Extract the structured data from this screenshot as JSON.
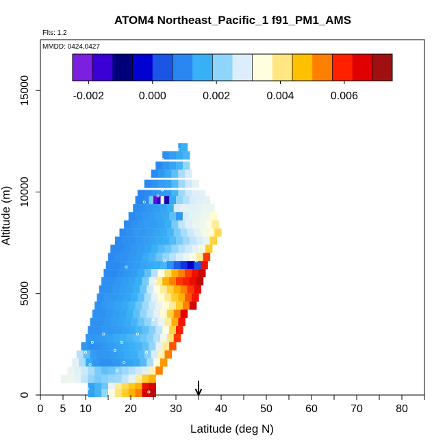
{
  "chart_data": {
    "type": "heatmap",
    "title": "ATOM4 Northeast_Pacific_1 f91_PM1_AMS",
    "flights_label": "Flts: 1,2",
    "dates_label": "MMDD: 0424,0427",
    "xlabel": "Latitude (deg N)",
    "ylabel": "Altitude (m)",
    "xlim": [
      0,
      85
    ],
    "ylim": [
      0,
      17500
    ],
    "x_ticks": [
      0,
      5,
      10,
      20,
      30,
      40,
      50,
      60,
      70,
      80
    ],
    "x_minor_ticks": [
      15,
      25,
      35,
      45,
      55,
      65,
      75,
      85
    ],
    "y_ticks": [
      0,
      5000,
      10000,
      15000
    ],
    "colorbar": {
      "range": [
        -0.0025,
        0.0075
      ],
      "tick_values": [
        -0.002,
        0.0,
        0.002,
        0.004,
        0.006
      ],
      "tick_labels": [
        "-0.002",
        "0.000",
        "0.002",
        "0.004",
        "0.006"
      ],
      "colors": [
        "#7b1fe0",
        "#3a00d6",
        "#00007a",
        "#0000d0",
        "#1a55e6",
        "#2a86f0",
        "#38b0f6",
        "#8fd4fb",
        "#dceefc",
        "#ffffe0",
        "#ffe680",
        "#ffc000",
        "#ff8000",
        "#ff2000",
        "#e00000",
        "#a01010"
      ]
    },
    "arrow_marker_x": 35,
    "strips": [
      {
        "alt": 12200,
        "lats": [
          30.5,
          31.0
        ],
        "values": [
          0.0012,
          0.0015
        ]
      },
      {
        "alt": 11800,
        "lats": [
          27.0,
          28.5,
          30.0,
          31.5
        ],
        "values": [
          0.001,
          0.0012,
          0.0014,
          0.0016
        ]
      },
      {
        "alt": 11300,
        "lats": [
          25.5,
          27.0,
          28.5,
          30.0,
          31.5
        ],
        "values": [
          0.0009,
          0.0011,
          0.0013,
          0.0016,
          0.0022
        ]
      },
      {
        "alt": 10900,
        "lats": [
          24.5,
          26.0,
          27.5,
          29.0,
          30.5,
          32.0
        ],
        "values": [
          0.0009,
          0.0011,
          0.0014,
          0.0018,
          0.0024,
          0.0028
        ]
      },
      {
        "alt": 10400,
        "lats": [
          23.0,
          24.5,
          26.0,
          27.5,
          29.0,
          30.5,
          32.0,
          33.5
        ],
        "values": [
          0.0009,
          0.001,
          0.0012,
          0.0013,
          0.0017,
          0.0023,
          0.0027,
          0.003
        ]
      },
      {
        "alt": 9900,
        "lats": [
          21.5,
          23.0,
          24.5,
          26.0,
          27.5,
          29.0,
          30.5,
          32.0,
          33.5,
          35.0
        ],
        "values": [
          0.0008,
          0.0009,
          0.001,
          0.0011,
          0.0012,
          0.0016,
          0.0023,
          0.0027,
          0.0029,
          0.003
        ]
      },
      {
        "alt": 9600,
        "lats": [
          21.0,
          22.5,
          24.0,
          25.0,
          25.8,
          26.6,
          27.4,
          28.5,
          30.0,
          31.5,
          33.0,
          34.5,
          36.0
        ],
        "values": [
          0.0008,
          0.0009,
          0.002,
          -0.0022,
          -0.0018,
          0.003,
          -0.0015,
          0.0014,
          0.0022,
          0.0025,
          0.0028,
          0.0029,
          0.003
        ]
      },
      {
        "alt": 9200,
        "lats": [
          20.5,
          22.0,
          23.5,
          25.0,
          26.5,
          28.0,
          29.5,
          31.0,
          32.5,
          34.0,
          35.5,
          37.0
        ],
        "values": [
          0.0009,
          0.001,
          0.0011,
          0.0012,
          0.0013,
          0.0015,
          0.0028,
          0.003,
          0.0029,
          0.003,
          0.0031,
          0.0031
        ]
      },
      {
        "alt": 8800,
        "lats": [
          19.5,
          21.0,
          22.5,
          24.0,
          25.5,
          27.0,
          28.5,
          30.0,
          31.5,
          33.0,
          34.5,
          36.0,
          37.5
        ],
        "values": [
          0.0009,
          0.001,
          0.0011,
          0.0012,
          0.0013,
          0.0014,
          0.0018,
          0.0011,
          0.0028,
          0.003,
          0.0031,
          0.0032,
          0.0036
        ]
      },
      {
        "alt": 8400,
        "lats": [
          18.5,
          20.0,
          21.5,
          23.0,
          24.5,
          26.0,
          27.5,
          29.0,
          30.5,
          32.0,
          33.5,
          35.0,
          36.5,
          38.0
        ],
        "values": [
          0.0009,
          0.001,
          0.0011,
          0.0012,
          0.0012,
          0.0013,
          0.0015,
          0.002,
          0.0026,
          0.0029,
          0.0031,
          0.0032,
          0.0034,
          0.004
        ]
      },
      {
        "alt": 8000,
        "lats": [
          17.5,
          19.0,
          20.5,
          22.0,
          23.5,
          25.0,
          26.5,
          28.0,
          29.5,
          31.0,
          32.5,
          34.0,
          35.5,
          37.0,
          38.5
        ],
        "values": [
          0.0009,
          0.001,
          0.0011,
          0.0011,
          0.0012,
          0.0013,
          0.0014,
          0.0016,
          0.002,
          0.0024,
          0.0027,
          0.003,
          0.0033,
          0.0036,
          0.0044
        ]
      },
      {
        "alt": 7600,
        "lats": [
          16.5,
          18.0,
          19.5,
          21.0,
          22.5,
          24.0,
          25.5,
          27.0,
          28.5,
          30.0,
          31.5,
          33.0,
          34.5,
          36.0,
          37.5
        ],
        "values": [
          0.0009,
          0.001,
          0.001,
          0.0011,
          0.0012,
          0.0013,
          0.0014,
          0.0015,
          0.0017,
          0.002,
          0.0023,
          0.0026,
          0.0028,
          0.0031,
          0.0045
        ]
      },
      {
        "alt": 7200,
        "lats": [
          15.5,
          17.0,
          18.5,
          20.0,
          21.5,
          23.0,
          24.5,
          26.0,
          27.5,
          29.0,
          30.5,
          32.0,
          33.5,
          35.0,
          36.5
        ],
        "values": [
          0.0009,
          0.0009,
          0.001,
          0.0011,
          0.0012,
          0.0013,
          0.0015,
          0.0017,
          0.0019,
          0.0022,
          0.0025,
          0.0027,
          0.003,
          0.0033,
          0.0046
        ]
      },
      {
        "alt": 6800,
        "lats": [
          15.0,
          16.5,
          18.0,
          19.5,
          21.0,
          22.5,
          24.0,
          25.5,
          27.0,
          28.5,
          30.0,
          31.5,
          33.0,
          34.5,
          36.0
        ],
        "values": [
          0.0009,
          0.001,
          0.001,
          0.0011,
          0.0012,
          0.0014,
          0.0016,
          0.0019,
          0.0022,
          0.0025,
          0.0028,
          0.0031,
          0.0034,
          0.004,
          0.006
        ]
      },
      {
        "alt": 6400,
        "lats": [
          14.5,
          16.0,
          17.5,
          19.0,
          20.5,
          22.0,
          23.5,
          25.0,
          26.5,
          28.0,
          29.5,
          31.0,
          32.5,
          34.0,
          35.5
        ],
        "values": [
          0.0009,
          0.0009,
          0.001,
          0.0011,
          0.0012,
          0.0013,
          0.0014,
          0.0015,
          0.0016,
          0.001,
          0.0003,
          -0.0001,
          -0.0006,
          0.0002,
          0.0065
        ]
      },
      {
        "alt": 6000,
        "lats": [
          14.0,
          15.5,
          17.0,
          18.5,
          20.0,
          21.5,
          23.0,
          24.5,
          26.0,
          27.5,
          29.0,
          30.5,
          32.0,
          33.5,
          35.0
        ],
        "values": [
          0.0009,
          0.0009,
          0.001,
          0.0011,
          0.0012,
          0.0014,
          0.0018,
          0.0025,
          0.0035,
          0.0043,
          0.005,
          0.0055,
          0.006,
          0.0065,
          0.007
        ]
      },
      {
        "alt": 5600,
        "lats": [
          13.5,
          15.0,
          16.5,
          18.0,
          19.5,
          21.0,
          22.5,
          24.0,
          25.5,
          27.0,
          28.5,
          30.0,
          31.5,
          33.0,
          34.5
        ],
        "values": [
          0.001,
          0.001,
          0.0011,
          0.0012,
          0.0013,
          0.0015,
          0.002,
          0.003,
          0.004,
          0.005,
          0.0055,
          0.006,
          0.0062,
          0.0066,
          0.0072
        ]
      },
      {
        "alt": 5200,
        "lats": [
          13.0,
          14.5,
          16.0,
          17.5,
          19.0,
          20.5,
          22.0,
          23.5,
          25.0,
          26.5,
          28.0,
          29.5,
          31.0,
          32.5,
          34.0
        ],
        "values": [
          0.001,
          0.001,
          0.0011,
          0.0012,
          0.0013,
          0.0015,
          0.0019,
          0.0027,
          0.0034,
          0.004,
          0.0045,
          0.005,
          0.0055,
          0.006,
          0.0066
        ]
      },
      {
        "alt": 4800,
        "lats": [
          12.5,
          14.0,
          15.5,
          17.0,
          18.5,
          20.0,
          21.5,
          23.0,
          24.5,
          26.0,
          27.5,
          29.0,
          30.5,
          32.0,
          33.5
        ],
        "values": [
          0.001,
          0.0011,
          0.0011,
          0.0012,
          0.0013,
          0.0015,
          0.0018,
          0.0024,
          0.003,
          0.0036,
          0.0041,
          0.0046,
          0.005,
          0.0058,
          0.0064
        ]
      },
      {
        "alt": 4400,
        "lats": [
          12.0,
          13.5,
          15.0,
          16.5,
          18.0,
          19.5,
          21.0,
          22.5,
          24.0,
          25.5,
          27.0,
          28.5,
          30.0,
          31.5,
          33.0
        ],
        "values": [
          0.001,
          0.0011,
          0.0012,
          0.0013,
          0.0014,
          0.0016,
          0.0019,
          0.0023,
          0.0027,
          0.0031,
          0.0036,
          0.004,
          0.0046,
          0.0055,
          0.007
        ]
      },
      {
        "alt": 4000,
        "lats": [
          11.5,
          13.0,
          14.5,
          16.0,
          17.5,
          19.0,
          20.5,
          22.0,
          23.5,
          25.0,
          26.5,
          28.0,
          29.5,
          31.0
        ],
        "values": [
          0.001,
          0.001,
          0.0011,
          0.0012,
          0.0013,
          0.0015,
          0.0018,
          0.0022,
          0.0026,
          0.003,
          0.0036,
          0.0045,
          0.0055,
          0.0068
        ]
      },
      {
        "alt": 3600,
        "lats": [
          11.0,
          12.5,
          14.0,
          15.5,
          17.0,
          18.5,
          20.0,
          21.5,
          23.0,
          24.5,
          26.0,
          27.5,
          29.0,
          30.5
        ],
        "values": [
          0.001,
          0.001,
          0.0011,
          0.0012,
          0.0013,
          0.0014,
          0.0016,
          0.0019,
          0.0022,
          0.0026,
          0.0031,
          0.004,
          0.005,
          0.0064
        ]
      },
      {
        "alt": 3200,
        "lats": [
          10.5,
          12.0,
          13.5,
          15.0,
          16.5,
          18.0,
          19.5,
          21.0,
          22.5,
          24.0,
          25.5,
          27.0,
          28.5,
          30.0
        ],
        "values": [
          0.001,
          0.001,
          0.0011,
          0.0011,
          0.0012,
          0.0013,
          0.0014,
          0.0016,
          0.0018,
          0.0021,
          0.0026,
          0.0034,
          0.0045,
          0.0062
        ]
      },
      {
        "alt": 2800,
        "lats": [
          10.0,
          11.5,
          13.0,
          14.5,
          16.0,
          17.5,
          19.0,
          20.5,
          22.0,
          23.5,
          25.0,
          26.5,
          28.0,
          29.5
        ],
        "values": [
          0.0011,
          0.0011,
          0.0012,
          0.0013,
          0.0014,
          0.0015,
          0.0016,
          0.0017,
          0.0019,
          0.0021,
          0.0025,
          0.0032,
          0.0042,
          0.006
        ]
      },
      {
        "alt": 2400,
        "lats": [
          9.0,
          10.5,
          12.0,
          13.5,
          15.0,
          16.5,
          18.0,
          19.5,
          21.0,
          22.5,
          24.0,
          25.5,
          27.0,
          28.5
        ],
        "values": [
          0.0011,
          0.001,
          0.001,
          0.0011,
          0.0012,
          0.0013,
          0.0014,
          0.0015,
          0.0016,
          0.0018,
          0.0022,
          0.003,
          0.004,
          0.0058
        ]
      },
      {
        "alt": 2000,
        "lats": [
          8.0,
          9.5,
          11.0,
          12.5,
          14.0,
          15.5,
          17.0,
          18.5,
          20.0,
          21.5,
          23.0,
          24.5,
          26.0,
          27.5
        ],
        "values": [
          0.0025,
          0.0018,
          0.0012,
          0.0011,
          0.0011,
          0.0012,
          0.0013,
          0.0014,
          0.0015,
          0.0017,
          0.0021,
          0.0028,
          0.0038,
          0.0055
        ]
      },
      {
        "alt": 1600,
        "lats": [
          7.0,
          8.5,
          10.0,
          11.5,
          13.0,
          14.5,
          16.0,
          17.5,
          19.0,
          20.5,
          22.0,
          23.5,
          25.0,
          26.5
        ],
        "values": [
          0.003,
          0.0024,
          0.0014,
          0.0011,
          0.001,
          0.001,
          0.0011,
          0.0012,
          0.0013,
          0.0014,
          0.0017,
          0.0024,
          0.0034,
          0.0052
        ]
      },
      {
        "alt": 1200,
        "lats": [
          6.0,
          7.5,
          9.0,
          10.5,
          12.0,
          13.5,
          15.0,
          16.5,
          18.0,
          19.5,
          21.0,
          22.5,
          24.0,
          25.5
        ],
        "values": [
          0.0031,
          0.0029,
          0.0027,
          0.0024,
          0.002,
          0.0018,
          0.0019,
          0.0021,
          0.0023,
          0.0025,
          0.0027,
          0.0029,
          0.0038,
          0.0055
        ]
      },
      {
        "alt": 800,
        "lats": [
          4.5,
          6.0,
          7.5,
          9.0,
          10.5,
          12.0,
          13.5,
          15.0,
          16.5,
          18.0,
          19.5,
          21.0,
          22.5,
          24.0
        ],
        "values": [
          0.0031,
          0.0032,
          0.003,
          0.0026,
          0.0022,
          0.002,
          0.0021,
          0.0022,
          0.0023,
          0.0026,
          0.003,
          0.004,
          0.0046,
          0.005
        ]
      },
      {
        "alt": 400,
        "lats": [
          10.5,
          12.0,
          13.5,
          15.0,
          16.5,
          18.0,
          19.5,
          21.0,
          22.5,
          24.0
        ],
        "values": [
          0.0013,
          0.0016,
          0.0019,
          0.0031,
          0.004,
          0.0044,
          0.0047,
          0.005,
          0.0066,
          0.007
        ]
      },
      {
        "alt": 100,
        "lats": [
          10.5,
          12.0,
          13.5,
          15.0,
          16.5,
          18.0,
          19.5,
          21.0,
          22.5,
          24.0
        ],
        "values": [
          0.0013,
          0.0016,
          0.0022,
          0.0034,
          0.0042,
          0.0046,
          0.005,
          0.0055,
          0.007,
          0.0072
        ]
      }
    ],
    "sample_points": [
      {
        "lat": 30.5,
        "alt": 12100
      },
      {
        "lat": 27.0,
        "alt": 11600
      },
      {
        "lat": 22.0,
        "alt": 10300
      },
      {
        "lat": 27.0,
        "alt": 10100
      },
      {
        "lat": 26.0,
        "alt": 9800
      },
      {
        "lat": 23.0,
        "alt": 9500
      },
      {
        "lat": 27.5,
        "alt": 6600
      },
      {
        "lat": 34.5,
        "alt": 6600
      },
      {
        "lat": 19.0,
        "alt": 6300
      },
      {
        "lat": 25.5,
        "alt": 5600
      },
      {
        "lat": 25.0,
        "alt": 3700
      },
      {
        "lat": 14.0,
        "alt": 3000
      },
      {
        "lat": 21.5,
        "alt": 3000
      },
      {
        "lat": 11.5,
        "alt": 2600
      },
      {
        "lat": 18.0,
        "alt": 2600
      },
      {
        "lat": 16.5,
        "alt": 2200
      },
      {
        "lat": 10.0,
        "alt": 2100
      },
      {
        "lat": 23.5,
        "alt": 2100
      },
      {
        "lat": 18.5,
        "alt": 1600
      },
      {
        "lat": 11.0,
        "alt": 1500
      },
      {
        "lat": 17.0,
        "alt": 1200
      },
      {
        "lat": 10.5,
        "alt": 300
      },
      {
        "lat": 24.0,
        "alt": 150
      }
    ]
  }
}
